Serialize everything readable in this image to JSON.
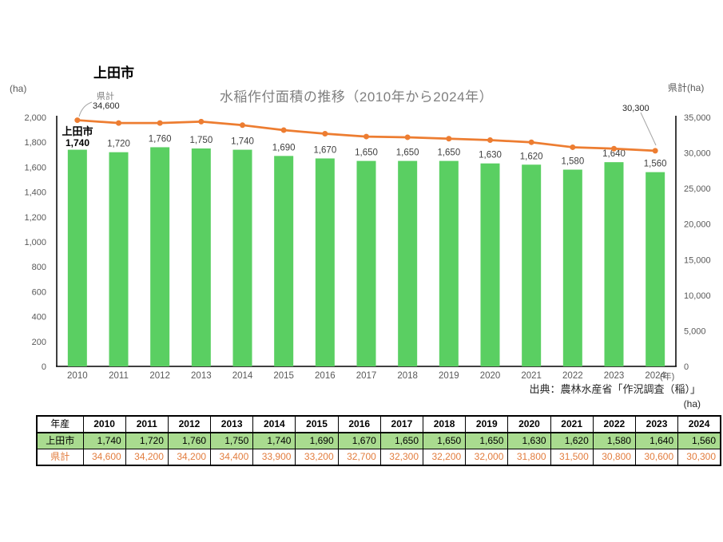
{
  "chart": {
    "top_title": "上田市",
    "main_title": "水稲作付面積の推移（2010年から2024年）",
    "left_axis_unit": "(ha)",
    "right_axis_label": "県計(ha)",
    "x_axis_unit": "(年)",
    "annotations": {
      "first_point_series": "県計",
      "first_point_value": "34,600",
      "last_point_value": "30,300",
      "first_bar_series": "上田市",
      "first_bar_value": "1,740"
    },
    "source": "出典：農林水産省「作況調査（稲）」",
    "table_unit": "(ha)",
    "colors": {
      "bar_green": "#5acf62",
      "line_orange": "#ed7d31",
      "title_gray": "#7f7f7f",
      "axis_text": "#595959",
      "bar_label_text": "#404040",
      "table_row_green": "#a9db8f",
      "table_orange_text": "#e27c3d",
      "leader_line_gray": "#a6a6a6"
    }
  },
  "chart_data": {
    "type": "bar",
    "subtype": "combo-bar-line-dual-axis",
    "title": "水稲作付面積の推移（2010年から2024年）",
    "categories": [
      "2010",
      "2011",
      "2012",
      "2013",
      "2014",
      "2015",
      "2016",
      "2017",
      "2018",
      "2019",
      "2020",
      "2021",
      "2022",
      "2023",
      "2024"
    ],
    "series": [
      {
        "name": "上田市",
        "type": "bar",
        "axis": "left",
        "values": [
          1740,
          1720,
          1760,
          1750,
          1740,
          1690,
          1670,
          1650,
          1650,
          1650,
          1630,
          1620,
          1580,
          1640,
          1560
        ]
      },
      {
        "name": "県計",
        "type": "line",
        "axis": "right",
        "values": [
          34600,
          34200,
          34200,
          34400,
          33900,
          33200,
          32700,
          32300,
          32200,
          32000,
          31800,
          31500,
          30800,
          30600,
          30300
        ]
      }
    ],
    "left_axis": {
      "label": "(ha)",
      "min": 0,
      "max": 2000,
      "step": 200
    },
    "right_axis": {
      "label": "県計(ha)",
      "min": 0,
      "max": 35000,
      "step": 5000
    },
    "x_label": "(年)",
    "grid": false,
    "legend_position": "none"
  },
  "table": {
    "corner_label": "年産",
    "unit_note": "(ha)"
  }
}
